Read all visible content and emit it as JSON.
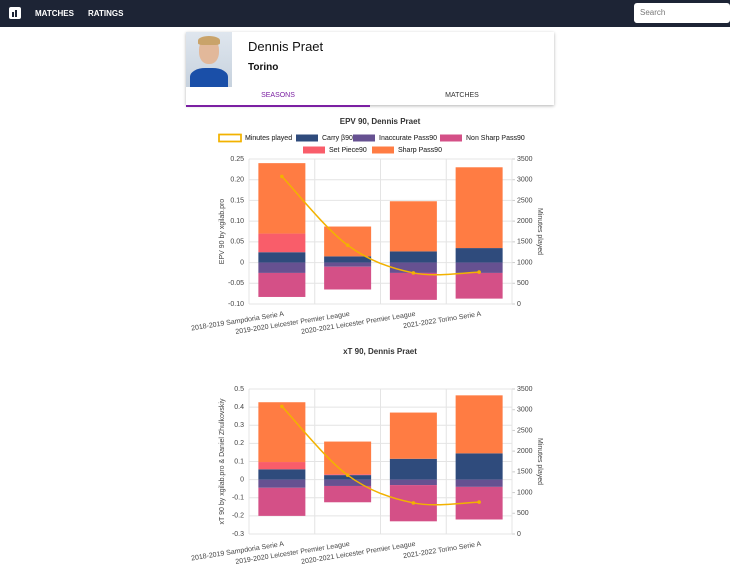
{
  "nav": {
    "items": [
      "MATCHES",
      "RATINGS"
    ],
    "search_placeholder": "Search"
  },
  "profile": {
    "name": "Dennis Praet",
    "team": "Torino",
    "tabs": [
      "SEASONS",
      "MATCHES"
    ]
  },
  "chart_data": [
    {
      "type": "bar",
      "stacked": true,
      "title": "EPV 90, Dennis Praet",
      "ylabel": "EPV 90 by xgilab.pro",
      "y2label": "Minutes played",
      "categories": [
        "2018-2019 Sampdoria Serie A",
        "2019-2020 Leicester Premier League",
        "2020-2021 Leicester Premier League",
        "2021-2022 Torino Serie A"
      ],
      "series": [
        {
          "name": "Minutes played",
          "type": "line",
          "axis": "y2",
          "color": "#f2b200",
          "values": [
            3080,
            1420,
            750,
            770
          ]
        },
        {
          "name": "Carry β90",
          "color": "#2f4b7c",
          "values": [
            0.025,
            0.015,
            0.027,
            0.035
          ]
        },
        {
          "name": "Inaccurate Pass90",
          "color": "#665191",
          "values": [
            -0.025,
            -0.01,
            -0.025,
            -0.025
          ]
        },
        {
          "name": "Non Sharp Pass90",
          "color": "#d45087",
          "values": [
            -0.058,
            -0.055,
            -0.065,
            -0.062
          ]
        },
        {
          "name": "Set Piece90",
          "color": "#f95d6a",
          "values": [
            0.045,
            0,
            0,
            0
          ]
        },
        {
          "name": "Sharp Pass90",
          "color": "#ff7c43",
          "values": [
            0.17,
            0.072,
            0.121,
            0.195
          ]
        }
      ],
      "ylim": [
        -0.1,
        0.25
      ],
      "yticks": [
        {
          "value": -0.1,
          "label": "-0.10"
        },
        -0.05,
        0,
        0.05,
        {
          "value": 0.1,
          "label": "0.10"
        },
        0.15,
        {
          "value": 0.2,
          "label": "0.20"
        },
        0.25
      ],
      "y2lim": [
        0,
        3500
      ],
      "y2ticks": [
        0,
        500,
        1000,
        1500,
        2000,
        2500,
        3000,
        3500
      ],
      "grid": true
    },
    {
      "type": "bar",
      "stacked": true,
      "title": "xT 90, Dennis Praet",
      "ylabel": "xT 90 by xgilab.pro & Daniel Zhulkovskiy",
      "y2label": "Minutes played",
      "categories": [
        "2018-2019 Sampdoria Serie A",
        "2019-2020 Leicester Premier League",
        "2020-2021 Leicester Premier League",
        "2021-2022 Torino Serie A"
      ],
      "series": [
        {
          "name": "Minutes played",
          "type": "line",
          "axis": "y2",
          "color": "#f2b200",
          "values": [
            3080,
            1420,
            750,
            770
          ]
        },
        {
          "name": "Carry β90",
          "color": "#2f4b7c",
          "values": [
            0.057,
            0.025,
            0.115,
            0.145
          ]
        },
        {
          "name": "Inaccurate Pass90",
          "color": "#665191",
          "values": [
            -0.045,
            -0.035,
            -0.03,
            -0.04
          ]
        },
        {
          "name": "Non Sharp Pass90",
          "color": "#d45087",
          "values": [
            -0.155,
            -0.09,
            -0.2,
            -0.18
          ]
        },
        {
          "name": "Set Piece90",
          "color": "#f95d6a",
          "values": [
            0.04,
            0.005,
            0,
            0
          ]
        },
        {
          "name": "Sharp Pass90",
          "color": "#ff7c43",
          "values": [
            0.33,
            0.18,
            0.255,
            0.32
          ]
        }
      ],
      "ylim": [
        -0.3,
        0.5
      ],
      "yticks": [
        -0.3,
        -0.2,
        -0.1,
        0,
        0.1,
        0.2,
        0.3,
        0.4,
        0.5
      ],
      "y2lim": [
        0,
        3500
      ],
      "y2ticks": [
        0,
        500,
        1000,
        1500,
        2000,
        2500,
        3000,
        3500
      ],
      "grid": true
    }
  ]
}
